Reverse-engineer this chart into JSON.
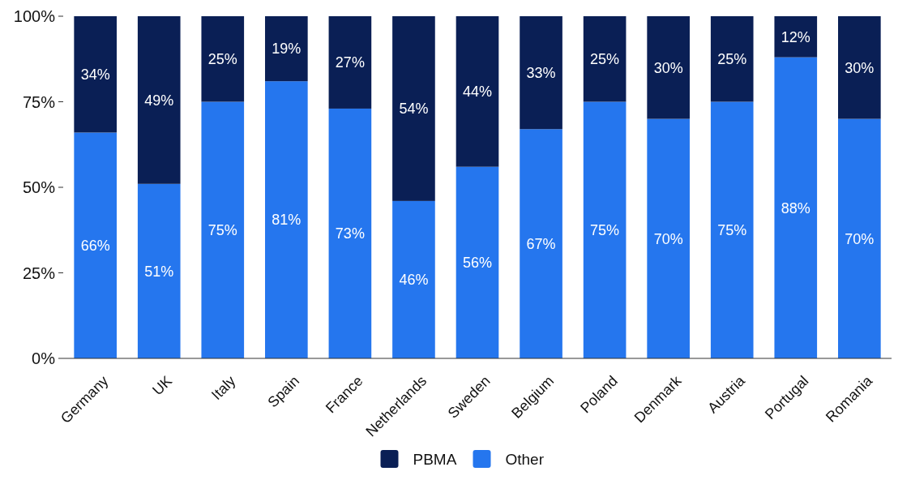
{
  "chart_data": {
    "type": "bar",
    "stacked": true,
    "categories": [
      "Germany",
      "UK",
      "Italy",
      "Spain",
      "France",
      "Netherlands",
      "Sweden",
      "Belgium",
      "Poland",
      "Denmark",
      "Austria",
      "Portugal",
      "Romania"
    ],
    "series": [
      {
        "name": "Other",
        "color": "#2576ee",
        "values": [
          66,
          51,
          75,
          81,
          73,
          46,
          56,
          67,
          75,
          70,
          75,
          88,
          70
        ],
        "value_labels": [
          "66%",
          "51%",
          "75%",
          "81%",
          "73%",
          "46%",
          "56%",
          "67%",
          "75%",
          "70%",
          "75%",
          "88%",
          "70%"
        ]
      },
      {
        "name": "PBMA",
        "color": "#0a1f55",
        "values": [
          34,
          49,
          25,
          19,
          27,
          54,
          44,
          33,
          25,
          30,
          25,
          12,
          30
        ],
        "value_labels": [
          "34%",
          "49%",
          "25%",
          "19%",
          "27%",
          "54%",
          "44%",
          "33%",
          "25%",
          "30%",
          "25%",
          "12%",
          "30%"
        ]
      }
    ],
    "ylim": [
      0,
      100
    ],
    "yticks": [
      {
        "value": 0,
        "label": "0%"
      },
      {
        "value": 25,
        "label": "25%"
      },
      {
        "value": 50,
        "label": "50%"
      },
      {
        "value": 75,
        "label": "75%"
      },
      {
        "value": 100,
        "label": "100%"
      }
    ],
    "grid": false,
    "legend": "bottom"
  }
}
